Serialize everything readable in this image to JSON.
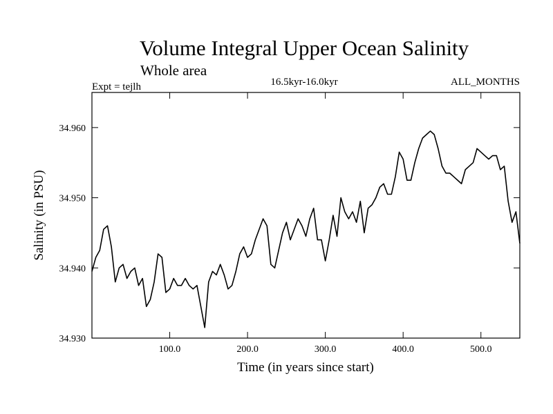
{
  "chart_data": {
    "type": "line",
    "title": "Volume Integral Upper Ocean Salinity",
    "subtitle": "Whole area",
    "left_label": "Expt = tejlh",
    "center_label": "16.5kyr-16.0kyr",
    "right_label": "ALL_MONTHS",
    "xlabel": "Time (in years since start)",
    "ylabel": "Salinity (in PSU)",
    "xlim": [
      0,
      550
    ],
    "ylim": [
      34.93,
      34.965
    ],
    "xticks": [
      100,
      200,
      300,
      400,
      500
    ],
    "xtick_labels": [
      "100.0",
      "200.0",
      "300.0",
      "400.0",
      "500.0"
    ],
    "yticks": [
      34.93,
      34.94,
      34.95,
      34.96
    ],
    "ytick_labels": [
      "34.930",
      "34.940",
      "34.950",
      "34.960"
    ],
    "series": [
      {
        "name": "salinity",
        "color": "#000000",
        "x": [
          0,
          5,
          10,
          15,
          20,
          25,
          30,
          35,
          40,
          45,
          50,
          55,
          60,
          65,
          70,
          75,
          80,
          85,
          90,
          95,
          100,
          105,
          110,
          115,
          120,
          125,
          130,
          135,
          140,
          145,
          150,
          155,
          160,
          165,
          170,
          175,
          180,
          185,
          190,
          195,
          200,
          205,
          210,
          215,
          220,
          225,
          230,
          235,
          240,
          245,
          250,
          255,
          260,
          265,
          270,
          275,
          280,
          285,
          290,
          295,
          300,
          305,
          310,
          315,
          320,
          325,
          330,
          335,
          340,
          345,
          350,
          355,
          360,
          365,
          370,
          375,
          380,
          385,
          390,
          395,
          400,
          405,
          410,
          415,
          420,
          425,
          430,
          435,
          440,
          445,
          450,
          455,
          460,
          465,
          470,
          475,
          480,
          485,
          490,
          495,
          500,
          505,
          510,
          515,
          520,
          525,
          530,
          535,
          540,
          545,
          550
        ],
        "y": [
          34.9395,
          34.9415,
          34.9425,
          34.9455,
          34.946,
          34.943,
          34.938,
          34.94,
          34.9405,
          34.9385,
          34.9395,
          34.94,
          34.9375,
          34.9385,
          34.9345,
          34.9355,
          34.938,
          34.942,
          34.9415,
          34.9365,
          34.937,
          34.9385,
          34.9375,
          34.9375,
          34.9385,
          34.9375,
          34.937,
          34.9375,
          34.9345,
          34.9315,
          34.938,
          34.9395,
          34.939,
          34.9405,
          34.939,
          34.937,
          34.9375,
          34.9395,
          34.942,
          34.943,
          34.9415,
          34.942,
          34.944,
          34.9455,
          34.947,
          34.946,
          34.9405,
          34.94,
          34.9425,
          34.945,
          34.9465,
          34.944,
          34.9455,
          34.947,
          34.946,
          34.9445,
          34.947,
          34.9485,
          34.944,
          34.944,
          34.941,
          34.944,
          34.9475,
          34.9445,
          34.95,
          34.948,
          34.947,
          34.948,
          34.9465,
          34.9495,
          34.945,
          34.9485,
          34.949,
          34.95,
          34.9515,
          34.952,
          34.9505,
          34.9505,
          34.953,
          34.9565,
          34.9555,
          34.9525,
          34.9525,
          34.955,
          34.957,
          34.9585,
          34.959,
          34.9595,
          34.959,
          34.957,
          34.9545,
          34.9535,
          34.9535,
          34.953,
          34.9525,
          34.952,
          34.954,
          34.9545,
          34.955,
          34.957,
          34.9565,
          34.956,
          34.9555,
          34.956,
          34.956,
          34.954,
          34.9545,
          34.9495,
          34.9465,
          34.948,
          34.9435
        ]
      }
    ]
  }
}
